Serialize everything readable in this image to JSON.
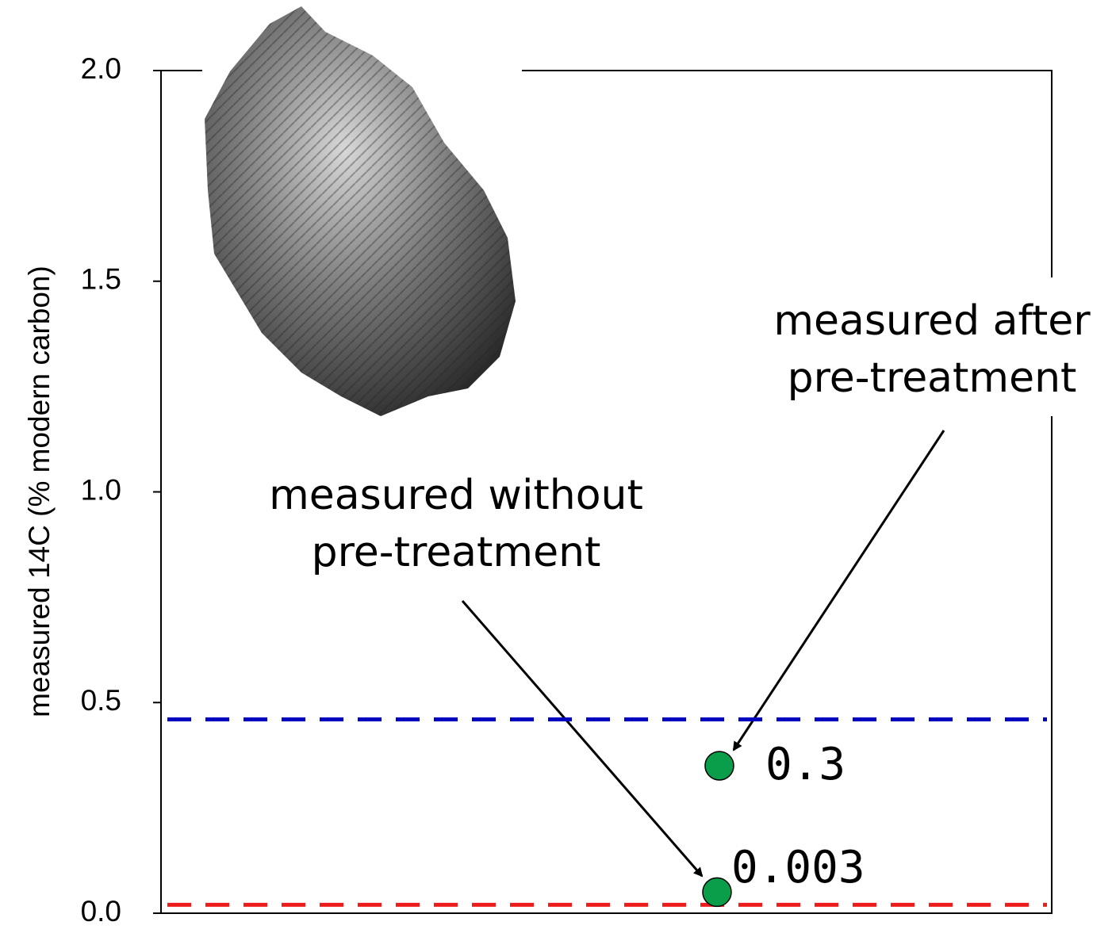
{
  "chart_data": {
    "type": "scatter",
    "y_label": "measured 14C  (% modern carbon)",
    "ylim": [
      0,
      2
    ],
    "yticks": [
      {
        "value": 0,
        "label": "0.0"
      },
      {
        "value": 0.5,
        "label": "0.5"
      },
      {
        "value": 1,
        "label": "1.0"
      },
      {
        "value": 1.5,
        "label": "1.5"
      },
      {
        "value": 2,
        "label": "2.0"
      }
    ],
    "series": [
      {
        "color": "#0a9e4a",
        "values": [
          0.35,
          0.05
        ]
      }
    ],
    "hlines": [
      {
        "value": 0.46,
        "color": "#0000c0"
      },
      {
        "value": 0.02,
        "color": "#ee1c1c"
      }
    ],
    "annotations": [
      {
        "lines": [
          "measured after",
          "pre-treatment"
        ]
      },
      {
        "lines": [
          "measured without",
          "pre-treatment"
        ]
      },
      {
        "text": "0.3"
      },
      {
        "text": "0.003"
      }
    ]
  }
}
